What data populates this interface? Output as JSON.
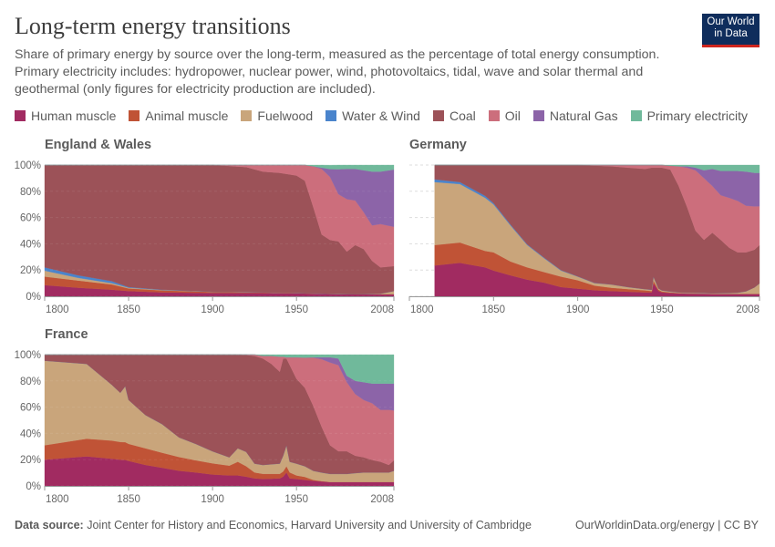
{
  "header": {
    "title": "Long-term energy transitions",
    "subtitle": "Share of primary energy by source over the long-term, measured as the percentage of total energy consumption. Primary electricity includes: hydropower, nuclear power, wind, photovoltaics, tidal, wave and solar thermal and geothermal (only figures for electricity production are included).",
    "logo_text": "Our World in Data"
  },
  "legend": [
    {
      "label": "Human muscle",
      "color": "#a12b61"
    },
    {
      "label": "Animal muscle",
      "color": "#c05336"
    },
    {
      "label": "Fuelwood",
      "color": "#c9a57b"
    },
    {
      "label": "Water & Wind",
      "color": "#4a84cc"
    },
    {
      "label": "Coal",
      "color": "#9c5258"
    },
    {
      "label": "Oil",
      "color": "#cc6e7c"
    },
    {
      "label": "Natural Gas",
      "color": "#8c64a8"
    },
    {
      "label": "Primary electricity",
      "color": "#70b99b"
    }
  ],
  "footer": {
    "source_label": "Data source:",
    "source": "Joint Center for History and Economics, Harvard University and University of Cambridge",
    "credit": "OurWorldinData.org/energy | CC BY"
  },
  "chart_data": [
    {
      "type": "area",
      "stacked": true,
      "title": "England & Wales",
      "xlim": [
        1800,
        2008
      ],
      "ylim": [
        0,
        100
      ],
      "x_ticks": [
        "1800",
        "1850",
        "1900",
        "1950",
        "2008"
      ],
      "y_ticks": [
        "0%",
        "20%",
        "40%",
        "60%",
        "80%",
        "100%"
      ],
      "grid": true,
      "series_names": [
        "Human muscle",
        "Animal muscle",
        "Fuelwood",
        "Water & Wind",
        "Coal",
        "Oil",
        "Natural Gas",
        "Primary electricity"
      ],
      "x": [
        1800,
        1820,
        1840,
        1850,
        1870,
        1900,
        1920,
        1930,
        1940,
        1950,
        1955,
        1960,
        1965,
        1970,
        1975,
        1980,
        1985,
        1990,
        1995,
        2000,
        2008
      ],
      "values": [
        [
          8.5,
          6.5,
          4.5,
          2.5,
          78,
          0,
          0,
          0
        ],
        [
          6.5,
          5.5,
          2,
          2,
          84,
          0,
          0,
          0
        ],
        [
          5,
          4,
          1,
          1.5,
          88.5,
          0,
          0,
          0
        ],
        [
          4,
          2,
          0.5,
          0.5,
          93,
          0,
          0,
          0
        ],
        [
          3,
          1.5,
          0.3,
          0.2,
          95,
          0,
          0,
          0
        ],
        [
          2.5,
          0.8,
          0.2,
          0,
          96.5,
          0,
          0,
          0
        ],
        [
          2.5,
          0.5,
          0.2,
          0,
          95.3,
          1.5,
          0,
          0
        ],
        [
          2.5,
          0.4,
          0.1,
          0,
          92,
          5,
          0,
          0
        ],
        [
          2.3,
          0.3,
          0.1,
          0,
          91.3,
          6,
          0,
          0
        ],
        [
          2.2,
          0.2,
          0.1,
          0,
          89.5,
          8,
          0,
          0
        ],
        [
          2.1,
          0.1,
          0.1,
          0,
          85.7,
          12,
          0,
          0
        ],
        [
          2,
          0.1,
          0.1,
          0,
          65.8,
          31,
          0,
          1
        ],
        [
          2,
          0,
          0.1,
          0,
          45,
          49.9,
          1,
          2
        ],
        [
          1.8,
          0,
          0.1,
          0,
          41,
          48,
          6,
          3
        ],
        [
          1.7,
          0,
          0.1,
          0,
          40,
          36,
          19,
          3.2
        ],
        [
          1.6,
          0,
          0.1,
          0,
          32.3,
          40,
          23,
          3
        ],
        [
          1.5,
          0,
          0.1,
          0,
          37.4,
          34,
          24,
          3
        ],
        [
          1.5,
          0,
          0.2,
          0,
          34.3,
          28,
          32,
          4
        ],
        [
          1.5,
          0,
          0.3,
          0,
          25.2,
          27,
          41,
          5
        ],
        [
          1.5,
          0,
          0.5,
          0,
          20,
          33,
          40,
          5
        ],
        [
          1.5,
          0,
          2.5,
          0,
          19,
          30,
          43.5,
          3.5
        ]
      ]
    },
    {
      "type": "area",
      "stacked": true,
      "title": "Germany",
      "xlim": [
        1800,
        2008
      ],
      "ylim": [
        0,
        100
      ],
      "x_ticks": [
        "1800",
        "1850",
        "1900",
        "1950",
        "2008"
      ],
      "y_ticks": [],
      "grid": true,
      "series_names": [
        "Human muscle",
        "Animal muscle",
        "Fuelwood",
        "Water & Wind",
        "Coal",
        "Oil",
        "Natural Gas",
        "Primary electricity"
      ],
      "x": [
        1815,
        1830,
        1845,
        1850,
        1860,
        1870,
        1880,
        1890,
        1900,
        1910,
        1920,
        1930,
        1940,
        1944,
        1945,
        1948,
        1950,
        1955,
        1960,
        1965,
        1970,
        1975,
        1980,
        1985,
        1990,
        1995,
        2000,
        2005,
        2008
      ],
      "values": [
        [
          23.5,
          15.5,
          48,
          2,
          11,
          0,
          0,
          0
        ],
        [
          25.5,
          15.5,
          44.5,
          1.5,
          13,
          0,
          0,
          0
        ],
        [
          22,
          12.6,
          40.4,
          1.5,
          23.5,
          0,
          0,
          0
        ],
        [
          19.6,
          13.9,
          36.5,
          1,
          29,
          0,
          0,
          0
        ],
        [
          16,
          10.5,
          27.5,
          0.8,
          45.2,
          0,
          0,
          0
        ],
        [
          12.7,
          9.3,
          17,
          0.6,
          60.4,
          0,
          0,
          0
        ],
        [
          10.4,
          8.1,
          10.5,
          0.5,
          70.5,
          0,
          0,
          0
        ],
        [
          7,
          8,
          4.6,
          0.3,
          80.1,
          0,
          0,
          0
        ],
        [
          5.8,
          6.4,
          2.8,
          0.2,
          84.8,
          0,
          0,
          0
        ],
        [
          4.6,
          3.5,
          2,
          0.1,
          89.3,
          0.5,
          0,
          0
        ],
        [
          4,
          2.5,
          2.5,
          0,
          90,
          1,
          0,
          0
        ],
        [
          3.5,
          2,
          1.5,
          0,
          91,
          2,
          0,
          0
        ],
        [
          3,
          1.5,
          1,
          0,
          91.5,
          3,
          0,
          0
        ],
        [
          3,
          1,
          1,
          0,
          93,
          2,
          0,
          0
        ],
        [
          10,
          2,
          3,
          0,
          83,
          2,
          0,
          0
        ],
        [
          4,
          1,
          1,
          0,
          92,
          2,
          0,
          0
        ],
        [
          3,
          0.7,
          0.8,
          0,
          93.5,
          2,
          0,
          0
        ],
        [
          2.5,
          0.5,
          0.6,
          0,
          92.9,
          3,
          0,
          0.5
        ],
        [
          2.2,
          0.3,
          0.5,
          0,
          81,
          15,
          0,
          1
        ],
        [
          2,
          0.2,
          0.5,
          0,
          65.3,
          30,
          1,
          1
        ],
        [
          2,
          0.1,
          0.5,
          0,
          47.4,
          46,
          2,
          2
        ],
        [
          2,
          0,
          0.5,
          0,
          40.5,
          47,
          6,
          4
        ],
        [
          1.8,
          0,
          0.5,
          0,
          46.2,
          35.5,
          13,
          3
        ],
        [
          1.8,
          0,
          0.6,
          0,
          40.6,
          34,
          18.5,
          4.5
        ],
        [
          1.8,
          0,
          0.7,
          0,
          34.5,
          38,
          20.5,
          4.5
        ],
        [
          1.8,
          0,
          1,
          0,
          30.7,
          39.2,
          22.8,
          4.5
        ],
        [
          1.8,
          0,
          2,
          0,
          29.7,
          35.5,
          26,
          5
        ],
        [
          1.8,
          0,
          5,
          0,
          28.7,
          33,
          25.5,
          6
        ],
        [
          1.8,
          0,
          8,
          0,
          29.2,
          29.6,
          25.4,
          6
        ]
      ]
    },
    {
      "type": "area",
      "stacked": true,
      "title": "France",
      "xlim": [
        1800,
        2008
      ],
      "ylim": [
        0,
        100
      ],
      "x_ticks": [
        "1800",
        "1850",
        "1900",
        "1950",
        "2008"
      ],
      "y_ticks": [
        "0%",
        "20%",
        "40%",
        "60%",
        "80%",
        "100%"
      ],
      "grid": true,
      "series_names": [
        "Human muscle",
        "Animal muscle",
        "Fuelwood",
        "Water & Wind",
        "Coal",
        "Oil",
        "Natural Gas",
        "Primary electricity"
      ],
      "x": [
        1800,
        1825,
        1840,
        1845,
        1848,
        1850,
        1860,
        1870,
        1880,
        1890,
        1900,
        1910,
        1915,
        1920,
        1925,
        1930,
        1935,
        1940,
        1942,
        1944,
        1946,
        1950,
        1955,
        1960,
        1965,
        1970,
        1975,
        1980,
        1985,
        1990,
        1995,
        2000,
        2005,
        2008
      ],
      "values": [
        [
          20,
          11,
          64.4,
          0,
          4.6,
          0,
          0,
          0
        ],
        [
          22.5,
          13.5,
          57,
          0,
          7,
          0,
          0,
          0
        ],
        [
          20.7,
          13.8,
          42.5,
          0,
          23,
          0,
          0,
          0
        ],
        [
          20,
          13.5,
          37.5,
          0,
          29,
          0,
          0,
          0
        ],
        [
          19.8,
          13.5,
          42.7,
          0,
          24,
          0,
          0,
          0
        ],
        [
          19,
          13,
          33.5,
          0,
          34.5,
          0,
          0,
          0
        ],
        [
          16,
          12.7,
          25.3,
          0,
          46,
          0,
          0,
          0
        ],
        [
          13.8,
          11.5,
          21.7,
          0,
          53,
          0,
          0,
          0
        ],
        [
          11.5,
          10.5,
          15,
          0,
          63,
          0,
          0,
          0
        ],
        [
          10.3,
          9.2,
          12.5,
          0,
          68,
          0,
          0,
          0
        ],
        [
          8.7,
          8.5,
          9.2,
          0,
          73.6,
          0,
          0,
          0
        ],
        [
          8,
          7.4,
          6.4,
          0,
          78.2,
          0,
          0,
          0
        ],
        [
          8,
          10.4,
          10.3,
          0,
          71.3,
          0,
          0,
          0
        ],
        [
          7,
          8,
          11,
          0,
          73.7,
          0.3,
          0,
          0
        ],
        [
          5.7,
          4.6,
          6.7,
          0,
          82,
          1,
          0,
          0
        ],
        [
          5.3,
          3.9,
          6.8,
          0,
          81,
          2,
          0,
          1
        ],
        [
          5.5,
          3.7,
          7.3,
          0,
          76.5,
          6,
          0,
          1
        ],
        [
          5.7,
          3.5,
          7.8,
          0,
          70,
          11.5,
          0,
          1.5
        ],
        [
          7,
          4,
          12,
          0,
          74,
          1.5,
          0,
          1.5
        ],
        [
          10.3,
          4.7,
          16,
          0,
          66,
          1,
          0,
          2
        ],
        [
          5.7,
          4.6,
          8.1,
          0,
          73.6,
          6,
          0,
          2
        ],
        [
          5.3,
          2.7,
          9,
          0,
          64.6,
          16.4,
          0,
          2
        ],
        [
          4.6,
          2.3,
          8.1,
          0,
          59.7,
          23,
          0,
          2.3
        ],
        [
          3.9,
          0.7,
          6.9,
          0,
          49.5,
          36.7,
          0.3,
          2
        ],
        [
          3.4,
          0.3,
          6.5,
          0,
          34.8,
          51.5,
          1.5,
          2
        ],
        [
          3,
          0,
          6.2,
          0,
          21.8,
          63,
          4,
          2
        ],
        [
          3,
          0,
          6.2,
          0,
          17.2,
          65.6,
          5,
          3
        ],
        [
          3,
          0,
          6.2,
          0,
          17.2,
          52.6,
          4.9,
          16.1
        ],
        [
          3,
          0,
          6.8,
          0,
          13.2,
          47,
          10,
          20
        ],
        [
          3,
          0,
          7.3,
          0,
          11.5,
          43.7,
          13.5,
          21
        ],
        [
          3,
          0,
          7.3,
          0,
          9.5,
          43.2,
          15,
          22
        ],
        [
          3,
          0,
          7.3,
          0,
          8.1,
          39.6,
          20,
          22
        ],
        [
          3,
          0,
          7.3,
          0,
          5.7,
          42,
          20,
          22
        ],
        [
          3,
          0,
          8.5,
          0,
          8,
          38,
          20.5,
          22
        ]
      ]
    }
  ]
}
